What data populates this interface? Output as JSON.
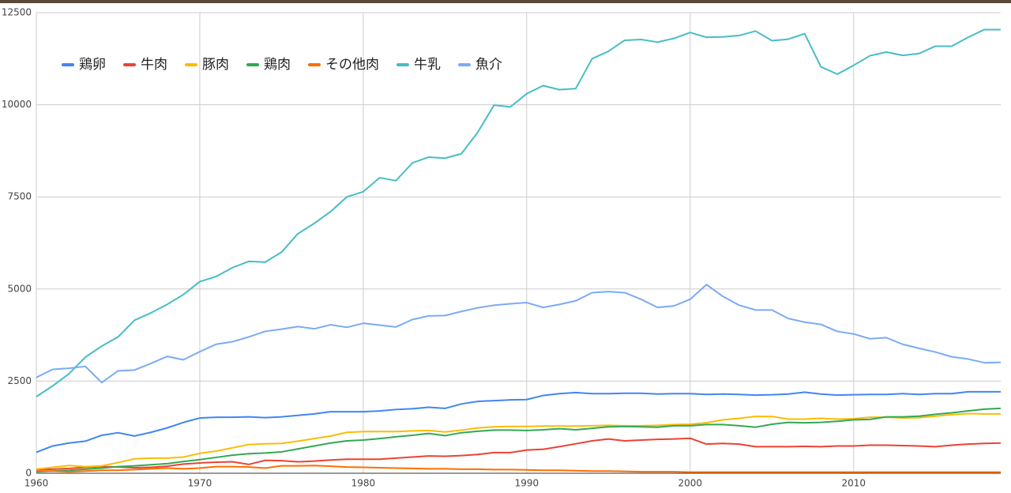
{
  "chart_data": {
    "type": "line",
    "x": [
      1960,
      1961,
      1962,
      1963,
      1964,
      1965,
      1966,
      1967,
      1968,
      1969,
      1970,
      1971,
      1972,
      1973,
      1974,
      1975,
      1976,
      1977,
      1978,
      1979,
      1980,
      1981,
      1982,
      1983,
      1984,
      1985,
      1986,
      1987,
      1988,
      1989,
      1990,
      1991,
      1992,
      1993,
      1994,
      1995,
      1996,
      1997,
      1998,
      1999,
      2000,
      2001,
      2002,
      2003,
      2004,
      2005,
      2006,
      2007,
      2008,
      2009,
      2010,
      2011,
      2012,
      2013,
      2014,
      2015,
      2016,
      2017,
      2018,
      2019
    ],
    "xlim": [
      1960,
      2019
    ],
    "xticks": [
      1960,
      1970,
      1980,
      1990,
      2000,
      2010
    ],
    "ylim": [
      0,
      12500
    ],
    "yticks": [
      0,
      2500,
      5000,
      7500,
      10000,
      12500
    ],
    "grid": true,
    "legend": "top-left",
    "series": [
      {
        "name": "鶏卵",
        "color": "#4285f4",
        "values": [
          570,
          740,
          820,
          870,
          1030,
          1100,
          1010,
          1110,
          1230,
          1380,
          1500,
          1520,
          1520,
          1530,
          1510,
          1530,
          1570,
          1610,
          1670,
          1670,
          1670,
          1690,
          1730,
          1750,
          1790,
          1760,
          1880,
          1950,
          1970,
          1990,
          2000,
          2110,
          2160,
          2190,
          2160,
          2160,
          2170,
          2170,
          2150,
          2160,
          2160,
          2140,
          2150,
          2140,
          2120,
          2130,
          2150,
          2200,
          2150,
          2120,
          2130,
          2140,
          2140,
          2160,
          2140,
          2160,
          2160,
          2210,
          2210,
          2210
        ]
      },
      {
        "name": "牛肉",
        "color": "#ea4335",
        "values": [
          100,
          110,
          130,
          160,
          180,
          170,
          150,
          160,
          190,
          250,
          280,
          300,
          310,
          240,
          350,
          340,
          310,
          330,
          360,
          380,
          380,
          380,
          410,
          440,
          470,
          460,
          480,
          510,
          560,
          560,
          630,
          650,
          720,
          800,
          880,
          930,
          880,
          900,
          920,
          930,
          950,
          790,
          810,
          790,
          720,
          720,
          720,
          730,
          720,
          740,
          740,
          760,
          760,
          750,
          740,
          720,
          760,
          790,
          810,
          820
        ]
      },
      {
        "name": "豚肉",
        "color": "#fbbc04",
        "values": [
          110,
          160,
          210,
          180,
          200,
          290,
          390,
          410,
          410,
          440,
          540,
          600,
          690,
          780,
          800,
          810,
          870,
          940,
          1010,
          1110,
          1130,
          1130,
          1130,
          1150,
          1160,
          1120,
          1170,
          1230,
          1260,
          1270,
          1270,
          1280,
          1280,
          1280,
          1290,
          1300,
          1290,
          1290,
          1300,
          1320,
          1330,
          1370,
          1450,
          1490,
          1540,
          1540,
          1470,
          1470,
          1490,
          1470,
          1480,
          1520,
          1520,
          1500,
          1510,
          1550,
          1590,
          1620,
          1610,
          1610
        ]
      },
      {
        "name": "鶏肉",
        "color": "#34a853",
        "values": [
          40,
          60,
          80,
          110,
          140,
          180,
          200,
          230,
          260,
          320,
          370,
          430,
          490,
          530,
          550,
          580,
          660,
          740,
          820,
          880,
          900,
          940,
          990,
          1030,
          1080,
          1020,
          1100,
          1140,
          1170,
          1170,
          1160,
          1180,
          1210,
          1180,
          1220,
          1260,
          1270,
          1260,
          1250,
          1290,
          1290,
          1320,
          1320,
          1290,
          1250,
          1330,
          1380,
          1370,
          1380,
          1410,
          1450,
          1460,
          1530,
          1530,
          1550,
          1600,
          1640,
          1690,
          1740,
          1760
        ]
      },
      {
        "name": "その他肉",
        "color": "#ff6d01",
        "values": [
          60,
          60,
          40,
          60,
          80,
          80,
          100,
          120,
          140,
          120,
          140,
          180,
          180,
          170,
          140,
          200,
          200,
          210,
          190,
          170,
          160,
          150,
          140,
          130,
          120,
          120,
          110,
          110,
          100,
          100,
          90,
          80,
          80,
          70,
          60,
          60,
          50,
          40,
          40,
          40,
          30,
          30,
          30,
          30,
          30,
          30,
          30,
          30,
          30,
          30,
          30,
          30,
          30,
          30,
          30,
          30,
          30,
          30,
          30,
          30
        ]
      },
      {
        "name": "牛乳",
        "color": "#46bdc6",
        "values": [
          2080,
          2370,
          2700,
          3150,
          3450,
          3700,
          4150,
          4350,
          4580,
          4850,
          5200,
          5340,
          5580,
          5750,
          5730,
          6000,
          6500,
          6780,
          7100,
          7500,
          7640,
          8020,
          7940,
          8420,
          8580,
          8550,
          8670,
          9250,
          9990,
          9940,
          10300,
          10520,
          10410,
          10440,
          11250,
          11450,
          11750,
          11770,
          11700,
          11800,
          11960,
          11830,
          11840,
          11880,
          12000,
          11740,
          11780,
          11930,
          11030,
          10830,
          11070,
          11330,
          11430,
          11340,
          11390,
          11590,
          11590,
          11830,
          12040,
          12040
        ]
      },
      {
        "name": "魚介",
        "color": "#7baaf7",
        "values": [
          2600,
          2820,
          2850,
          2900,
          2460,
          2780,
          2800,
          2980,
          3170,
          3080,
          3300,
          3500,
          3570,
          3700,
          3850,
          3910,
          3980,
          3920,
          4030,
          3960,
          4070,
          4020,
          3970,
          4170,
          4270,
          4280,
          4390,
          4490,
          4560,
          4600,
          4630,
          4500,
          4580,
          4680,
          4900,
          4930,
          4900,
          4720,
          4500,
          4540,
          4720,
          5120,
          4800,
          4560,
          4430,
          4430,
          4200,
          4100,
          4040,
          3850,
          3780,
          3650,
          3680,
          3500,
          3390,
          3290,
          3160,
          3100,
          3000,
          3010
        ]
      }
    ]
  }
}
